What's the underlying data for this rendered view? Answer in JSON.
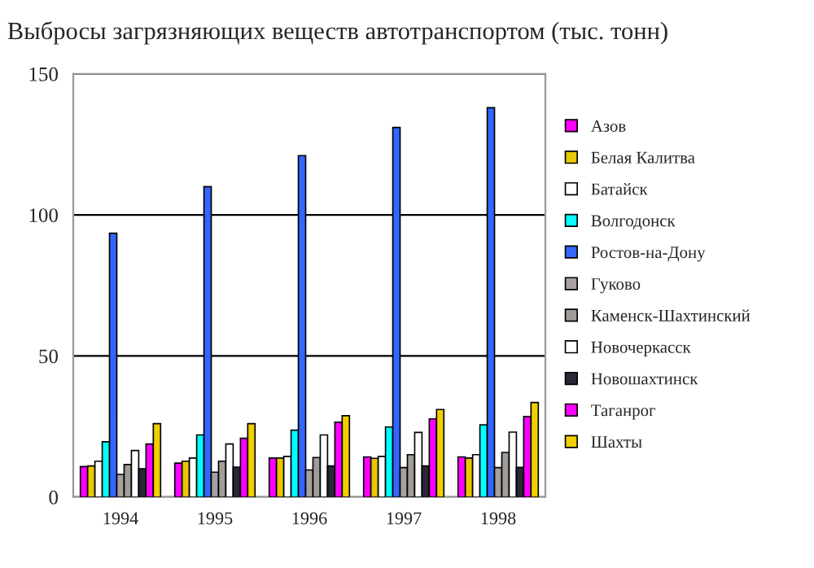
{
  "chart_data": {
    "type": "bar",
    "title": "Выбросы загрязняющих веществ автотранспортом (тыс. тонн)",
    "categories": [
      "1994",
      "1995",
      "1996",
      "1997",
      "1998"
    ],
    "series": [
      {
        "name": "Азов",
        "color": "#ff00ff",
        "values": [
          10.8,
          12,
          13.8,
          14.2,
          14.2
        ]
      },
      {
        "name": "Белая Калитва",
        "color": "#e8c800",
        "values": [
          11,
          12.7,
          13.8,
          13.7,
          13.8
        ]
      },
      {
        "name": "Батайск",
        "color": "#ffffff",
        "values": [
          12.7,
          13.8,
          14.4,
          14.4,
          15
        ]
      },
      {
        "name": "Волгодонск",
        "color": "#00ffff",
        "values": [
          19.6,
          22,
          23.7,
          24.8,
          25.6
        ]
      },
      {
        "name": "Ростов-на-Дону",
        "color": "#3366ff",
        "values": [
          93.5,
          110,
          121,
          131,
          138
        ]
      },
      {
        "name": "Гуково",
        "color": "#a8a0a0",
        "values": [
          8,
          8.8,
          9.6,
          10.4,
          10.4
        ]
      },
      {
        "name": "Каменск-Шахтинский",
        "color": "#a09c98",
        "values": [
          11.5,
          12.7,
          14,
          15,
          15.8
        ]
      },
      {
        "name": "Новочеркасск",
        "color": "#ffffff",
        "values": [
          16.5,
          18.8,
          22,
          22.9,
          23
        ]
      },
      {
        "name": "Новошахтинск",
        "color": "#282838",
        "values": [
          10,
          10.6,
          11,
          11,
          10.5
        ]
      },
      {
        "name": "Таганрог",
        "color": "#ff00ff",
        "values": [
          18.8,
          20.8,
          26.5,
          27.7,
          28.5
        ]
      },
      {
        "name": "Шахты",
        "color": "#f0d000",
        "values": [
          26,
          26,
          28.8,
          31,
          33.5
        ]
      }
    ],
    "ylim": [
      0,
      150
    ],
    "yticks": [
      0,
      50,
      100,
      150
    ],
    "grid": "y",
    "legend": "right"
  }
}
